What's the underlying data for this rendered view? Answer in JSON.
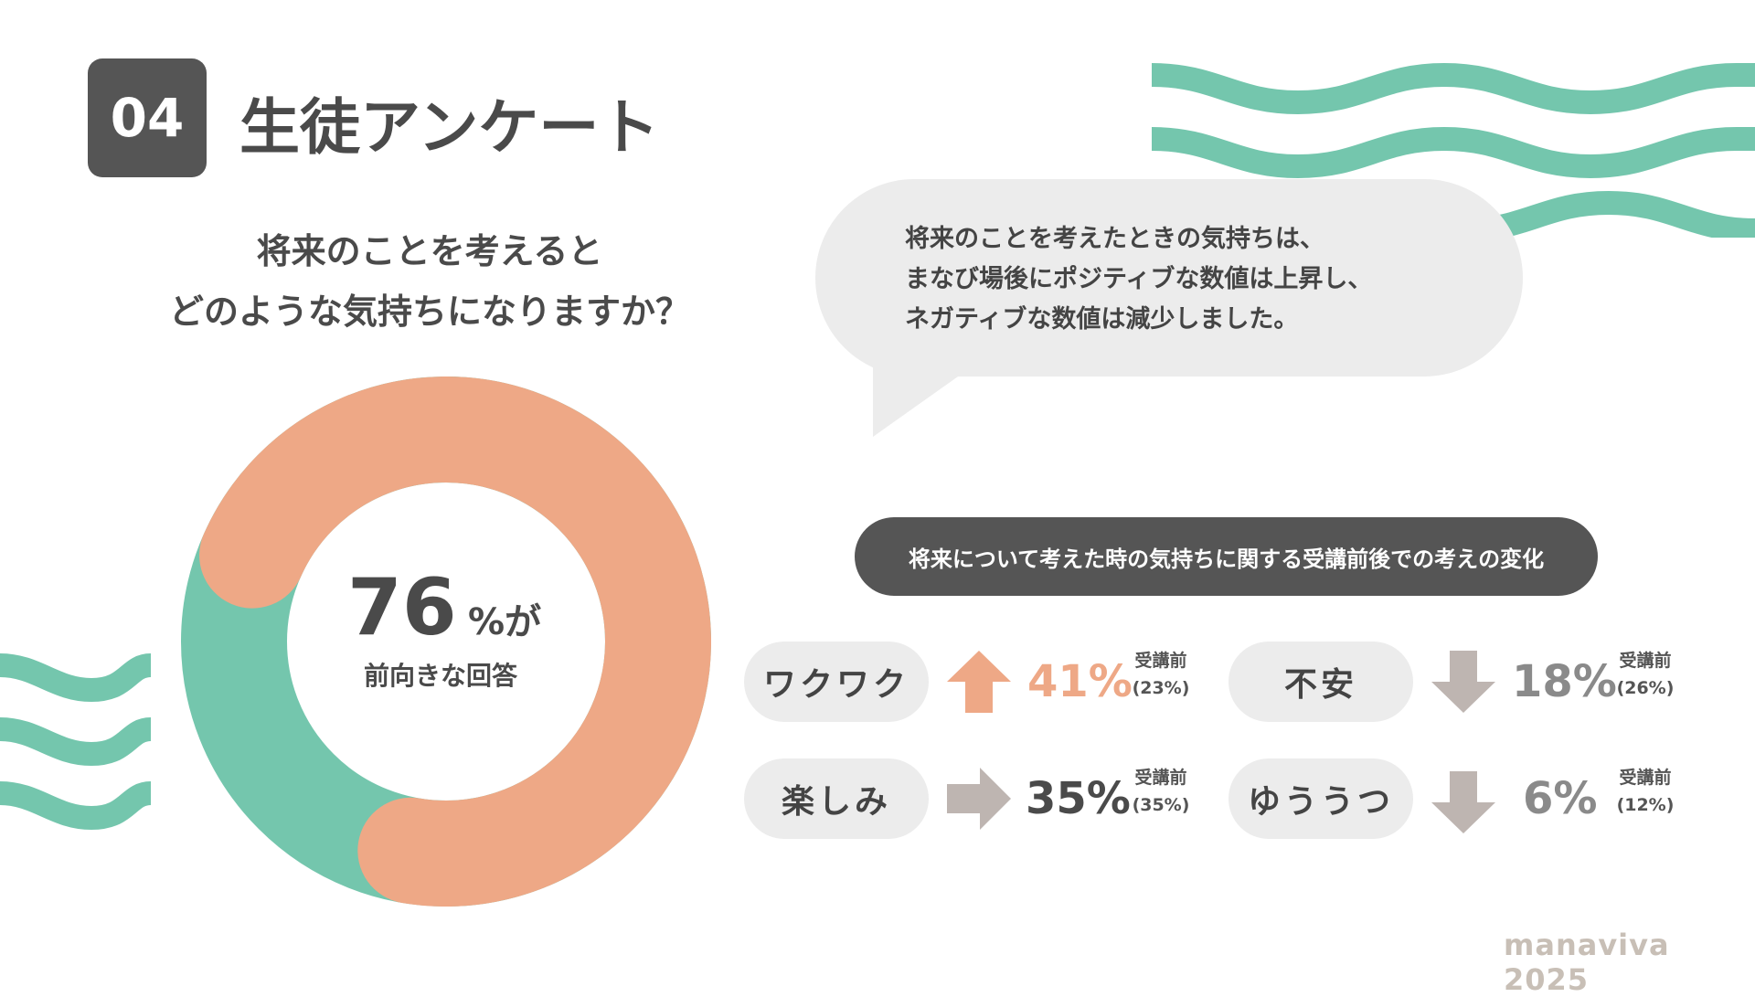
{
  "header": {
    "number": "04",
    "title": "生徒アンケート"
  },
  "question": {
    "line1": "将来のことを考えると",
    "line2": "どのような気持ちになりますか？"
  },
  "bubble": {
    "line1": "将来のことを考えたときの気持ちは、",
    "line2": "まなび場後にポジティブな数値は上昇し、",
    "line3": "ネガティブな数値は減少しました。"
  },
  "donut": {
    "big_value": "76",
    "suffix": "%が",
    "caption": "前向きな回答"
  },
  "section_title": "将来について考えた時の気持ちに関する受講前後での考えの変化",
  "items": [
    {
      "label": "ワクワク",
      "after": "41%",
      "before_label": "受講前",
      "before": "(23%)",
      "trend": "up"
    },
    {
      "label": "楽しみ",
      "after": "35%",
      "before_label": "受講前",
      "before": "(35%)",
      "trend": "flat"
    },
    {
      "label": "不安",
      "after": "18%",
      "before_label": "受講前",
      "before": "(26%)",
      "trend": "down"
    },
    {
      "label": "ゆううつ",
      "after": "6%",
      "before_label": "受講前",
      "before": "(12%)",
      "trend": "down"
    }
  ],
  "footer": "manaviva 2025",
  "colors": {
    "accent_orange": "#eea886",
    "accent_green": "#74c6ad",
    "dark": "#555555",
    "arrow_gray": "#beb5b1",
    "text": "#4a4a4a"
  },
  "chart_data": [
    {
      "type": "pie",
      "categories": [
        "前向きな回答",
        ""
      ],
      "values": [
        76,
        24
      ],
      "colors": [
        "#eea886",
        "#74c6ad"
      ],
      "title": ""
    },
    {
      "type": "table",
      "columns": [
        "",
        "受講前",
        ""
      ],
      "rows": [
        [
          "ワクワク",
          23,
          41
        ],
        [
          "楽しみ",
          35,
          35
        ],
        [
          "不安",
          26,
          18
        ],
        [
          "ゆううつ",
          12,
          6
        ]
      ]
    }
  ]
}
